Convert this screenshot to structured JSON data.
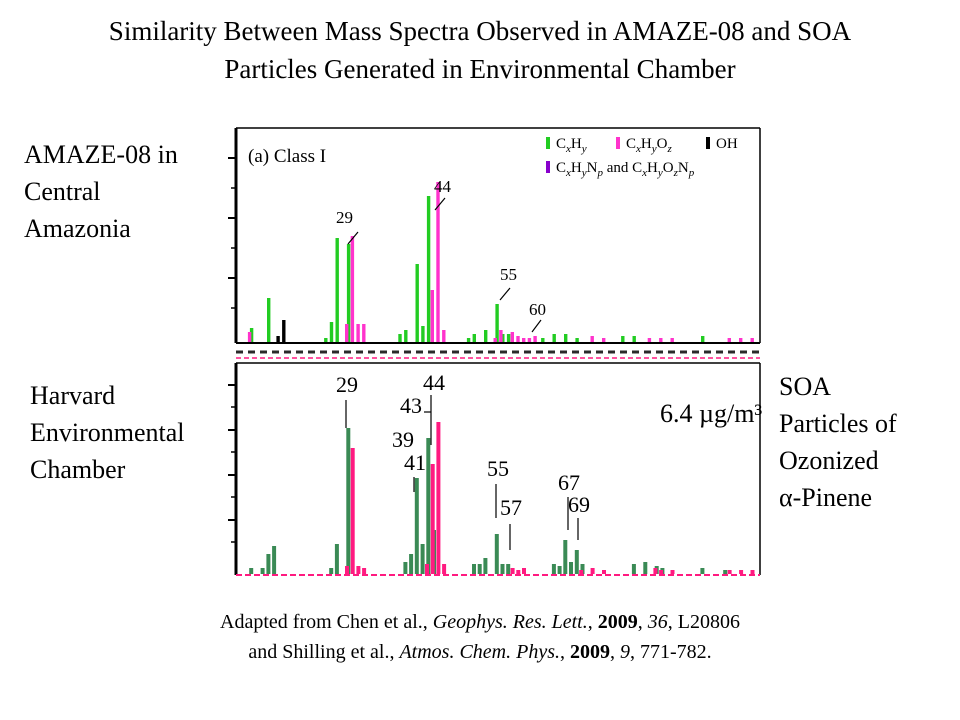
{
  "slide": {
    "title_line1": "Similarity Between Mass Spectra Observed in AMAZE-08 and SOA",
    "title_line2": "Particles Generated in Environmental Chamber",
    "label_top": [
      "AMAZE-08 in",
      "Central",
      "Amazonia"
    ],
    "label_bottom": [
      "Harvard",
      "Environmental",
      "Chamber"
    ],
    "label_right": [
      "SOA",
      "Particles of",
      "Ozonized",
      "α-Pinene"
    ],
    "caption": {
      "line1_prefix": "Adapted from Chen et al., ",
      "line1_journal": "Geophys. Res. Lett.",
      "line1_sep": ", ",
      "line1_year": "2009",
      "line1_vol": "36",
      "line1_rest": ", L20806",
      "line2_prefix": "and Shilling et al., ",
      "line2_journal": "Atmos. Chem. Phys.",
      "line2_sep": ", ",
      "line2_year": "2009",
      "line2_vol": "9",
      "line2_rest": ", 771-782."
    }
  },
  "colors": {
    "top_green": "#22cc22",
    "top_magenta": "#ff33cc",
    "top_black": "#000000",
    "top_purple": "#8800cc",
    "bottom_green": "#3a8a55",
    "bottom_magenta": "#ff1a80"
  },
  "chart_data": [
    {
      "type": "bar",
      "subtitle": "(a) Class I",
      "x_range": [
        10,
        100
      ],
      "legend": [
        {
          "label": "CxHy",
          "color_key": "top_green"
        },
        {
          "label": "CxHyOz",
          "color_key": "top_magenta"
        },
        {
          "label": "OH",
          "color_key": "top_black"
        },
        {
          "label": "CxHyNp and CxHyOzNp",
          "color_key": "top_purple"
        }
      ],
      "legend_position": "top-right",
      "annotations": [
        "29",
        "44",
        "55",
        "60"
      ],
      "series": [
        {
          "name": "CxHy",
          "color_key": "top_green",
          "points": [
            [
              12,
              0.07
            ],
            [
              15,
              0.22
            ],
            [
              25,
              0.02
            ],
            [
              26,
              0.1
            ],
            [
              27,
              0.52
            ],
            [
              29,
              0.49
            ],
            [
              38,
              0.04
            ],
            [
              39,
              0.06
            ],
            [
              41,
              0.39
            ],
            [
              42,
              0.08
            ],
            [
              43,
              0.73
            ],
            [
              50,
              0.02
            ],
            [
              51,
              0.04
            ],
            [
              53,
              0.06
            ],
            [
              55,
              0.19
            ],
            [
              56,
              0.04
            ],
            [
              57,
              0.04
            ],
            [
              63,
              0.02
            ],
            [
              65,
              0.04
            ],
            [
              67,
              0.04
            ],
            [
              69,
              0.02
            ],
            [
              77,
              0.03
            ],
            [
              79,
              0.03
            ],
            [
              91,
              0.03
            ]
          ]
        },
        {
          "name": "CxHyOz",
          "color_key": "top_magenta",
          "points": [
            [
              11,
              0.05
            ],
            [
              28,
              0.09
            ],
            [
              29,
              0.53
            ],
            [
              30,
              0.09
            ],
            [
              31,
              0.09
            ],
            [
              43,
              0.26
            ],
            [
              44,
              0.8
            ],
            [
              45,
              0.06
            ],
            [
              54,
              0.02
            ],
            [
              55,
              0.06
            ],
            [
              57,
              0.05
            ],
            [
              58,
              0.03
            ],
            [
              59,
              0.02
            ],
            [
              60,
              0.02
            ],
            [
              61,
              0.03
            ],
            [
              71,
              0.03
            ],
            [
              73,
              0.02
            ],
            [
              81,
              0.02
            ],
            [
              83,
              0.02
            ],
            [
              85,
              0.02
            ],
            [
              95,
              0.02
            ],
            [
              97,
              0.02
            ],
            [
              99,
              0.02
            ]
          ]
        },
        {
          "name": "OH",
          "color_key": "top_black",
          "points": [
            [
              16,
              0.03
            ],
            [
              17,
              0.11
            ]
          ]
        }
      ]
    },
    {
      "type": "bar",
      "annotation_text": "6.4 µg/m³",
      "x_range": [
        10,
        100
      ],
      "annotations": [
        "29",
        "39",
        "41",
        "43",
        "44",
        "55",
        "57",
        "67",
        "69"
      ],
      "series": [
        {
          "name": "",
          "color_key": "bottom_green",
          "points": [
            [
              12,
              0.03
            ],
            [
              14,
              0.03
            ],
            [
              15,
              0.1
            ],
            [
              16,
              0.14
            ],
            [
              26,
              0.03
            ],
            [
              27,
              0.15
            ],
            [
              29,
              0.73
            ],
            [
              39,
              0.06
            ],
            [
              40,
              0.1
            ],
            [
              41,
              0.48
            ],
            [
              42,
              0.15
            ],
            [
              43,
              0.68
            ],
            [
              44,
              0.22
            ],
            [
              51,
              0.05
            ],
            [
              52,
              0.05
            ],
            [
              53,
              0.08
            ],
            [
              55,
              0.2
            ],
            [
              56,
              0.05
            ],
            [
              57,
              0.05
            ],
            [
              65,
              0.05
            ],
            [
              66,
              0.04
            ],
            [
              67,
              0.17
            ],
            [
              68,
              0.06
            ],
            [
              69,
              0.12
            ],
            [
              70,
              0.05
            ],
            [
              79,
              0.05
            ],
            [
              81,
              0.06
            ],
            [
              83,
              0.04
            ],
            [
              84,
              0.03
            ],
            [
              91,
              0.03
            ],
            [
              95,
              0.02
            ]
          ]
        },
        {
          "name": "",
          "color_key": "bottom_magenta",
          "points": [
            [
              28,
              0.04
            ],
            [
              29,
              0.63
            ],
            [
              30,
              0.04
            ],
            [
              31,
              0.03
            ],
            [
              42,
              0.05
            ],
            [
              43,
              0.55
            ],
            [
              44,
              0.76
            ],
            [
              45,
              0.05
            ],
            [
              57,
              0.03
            ],
            [
              58,
              0.02
            ],
            [
              59,
              0.03
            ],
            [
              69,
              0.02
            ],
            [
              71,
              0.03
            ],
            [
              73,
              0.02
            ],
            [
              82,
              0.03
            ],
            [
              83,
              0.02
            ],
            [
              85,
              0.02
            ],
            [
              95,
              0.02
            ],
            [
              97,
              0.02
            ],
            [
              99,
              0.02
            ]
          ]
        }
      ]
    }
  ]
}
